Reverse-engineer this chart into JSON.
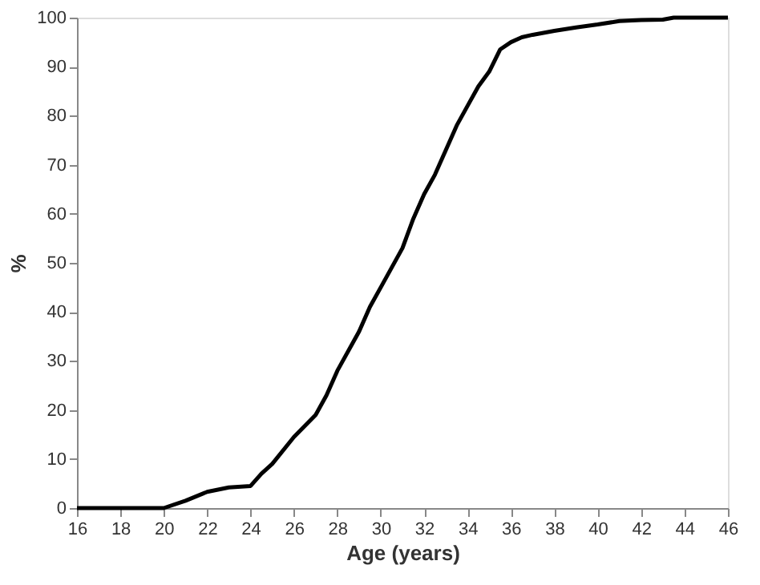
{
  "chart_data": {
    "type": "line",
    "xlabel": "Age (years)",
    "ylabel": "%",
    "x": [
      16,
      20,
      21,
      22,
      23,
      24,
      24.5,
      25,
      26,
      27,
      27.5,
      28,
      29,
      29.5,
      30,
      31,
      31.5,
      32,
      32.5,
      33,
      33.5,
      34,
      34.5,
      35,
      35.5,
      36,
      36.5,
      37,
      38,
      39,
      40,
      41,
      42,
      43,
      43.5,
      46
    ],
    "series": [
      {
        "color": "#000000",
        "values": [
          0,
          0,
          1.5,
          3.3,
          4.2,
          4.5,
          7,
          9,
          14.5,
          19,
          23,
          28,
          36,
          41,
          45,
          53,
          59,
          64,
          68,
          73,
          78,
          82,
          86,
          89,
          93.5,
          95,
          96,
          96.5,
          97.3,
          98,
          98.6,
          99.3,
          99.5,
          99.6,
          100,
          100
        ]
      }
    ],
    "xlim": [
      16,
      46
    ],
    "xticks": [
      16,
      18,
      20,
      22,
      24,
      26,
      28,
      30,
      32,
      34,
      36,
      38,
      40,
      42,
      44,
      46
    ],
    "ylim": [
      0,
      100
    ],
    "yticks": [
      0,
      10,
      20,
      30,
      40,
      50,
      60,
      70,
      80,
      90,
      100
    ],
    "grid": false,
    "legend": false,
    "marker": "none",
    "line_style": "solid"
  }
}
